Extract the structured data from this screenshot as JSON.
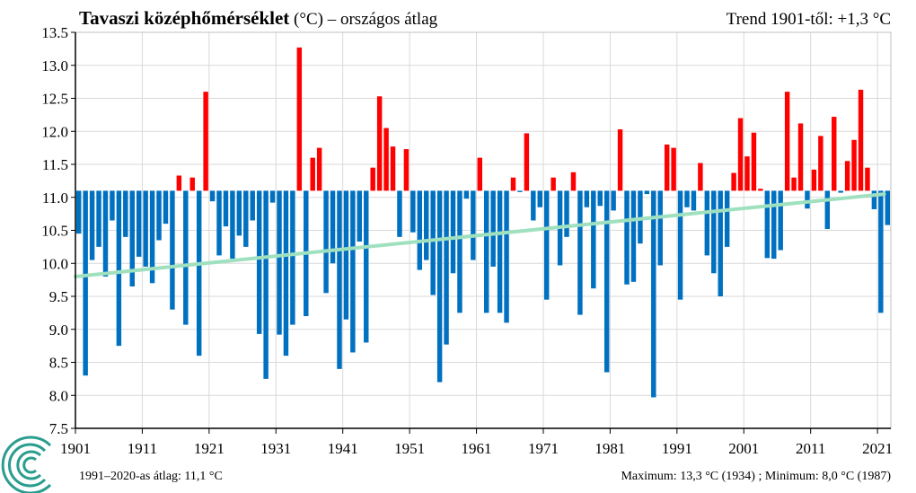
{
  "title": {
    "bold": "Tavaszi középhőmérséklet",
    "regular": " (°C) – országos átlag"
  },
  "trend_label": "Trend 1901-től: +1,3 °C",
  "footer": {
    "mean_label": "1991–2020-as átlag: 11,1 °C",
    "extremes_label": "Maximum: 13,3 °C (1934) ; Minimum: 8,0 °C (1987)"
  },
  "colors": {
    "above": "#ff0000",
    "below": "#0070c0",
    "trend": "#9fe0bf",
    "grid": "#d9d9d9",
    "axis": "#000000"
  },
  "logo_icon": "swirl-logo-icon",
  "chart_data": {
    "type": "bar",
    "baseline": 11.1,
    "ylim": [
      7.5,
      13.5
    ],
    "yticks": [
      "7.5",
      "8.0",
      "8.5",
      "9.0",
      "9.5",
      "10.0",
      "10.5",
      "11.0",
      "11.5",
      "12.0",
      "12.5",
      "13.0",
      "13.5"
    ],
    "xlim": [
      1901,
      2022
    ],
    "xticks": [
      "1901",
      "1911",
      "1921",
      "1931",
      "1941",
      "1951",
      "1961",
      "1971",
      "1981",
      "1991",
      "2001",
      "2011",
      "2021"
    ],
    "grid": true,
    "trend": {
      "start_year": 1901,
      "start_value": 9.8,
      "end_year": 2022,
      "end_value": 11.05
    },
    "years": [
      1901,
      1902,
      1903,
      1904,
      1905,
      1906,
      1907,
      1908,
      1909,
      1910,
      1911,
      1912,
      1913,
      1914,
      1915,
      1916,
      1917,
      1918,
      1919,
      1920,
      1921,
      1922,
      1923,
      1924,
      1925,
      1926,
      1927,
      1928,
      1929,
      1930,
      1931,
      1932,
      1933,
      1934,
      1935,
      1936,
      1937,
      1938,
      1939,
      1940,
      1941,
      1942,
      1943,
      1944,
      1945,
      1946,
      1947,
      1948,
      1949,
      1950,
      1951,
      1952,
      1953,
      1954,
      1955,
      1956,
      1957,
      1958,
      1959,
      1960,
      1961,
      1962,
      1963,
      1964,
      1965,
      1966,
      1967,
      1968,
      1969,
      1970,
      1971,
      1972,
      1973,
      1974,
      1975,
      1976,
      1977,
      1978,
      1979,
      1980,
      1981,
      1982,
      1983,
      1984,
      1985,
      1986,
      1987,
      1988,
      1989,
      1990,
      1991,
      1992,
      1993,
      1994,
      1995,
      1996,
      1997,
      1998,
      1999,
      2000,
      2001,
      2002,
      2003,
      2004,
      2005,
      2006,
      2007,
      2008,
      2009,
      2010,
      2011,
      2012,
      2013,
      2014,
      2015,
      2016,
      2017,
      2018,
      2019,
      2020,
      2021,
      2022
    ],
    "values": [
      10.45,
      8.3,
      10.05,
      10.25,
      9.8,
      10.65,
      8.75,
      10.4,
      9.65,
      10.1,
      9.95,
      9.7,
      10.35,
      10.6,
      9.3,
      11.33,
      9.07,
      11.3,
      8.6,
      12.6,
      10.94,
      10.12,
      10.56,
      10.07,
      10.42,
      10.25,
      10.65,
      8.93,
      8.25,
      10.92,
      8.92,
      8.6,
      9.07,
      13.27,
      9.2,
      11.6,
      11.75,
      9.55,
      10.0,
      8.4,
      9.15,
      8.65,
      10.33,
      8.8,
      11.45,
      12.53,
      12.05,
      11.77,
      10.4,
      11.73,
      10.47,
      9.9,
      10.05,
      9.52,
      8.2,
      8.77,
      9.85,
      9.25,
      10.98,
      10.05,
      11.6,
      9.25,
      9.95,
      9.25,
      9.1,
      11.3,
      11.08,
      11.97,
      10.65,
      10.85,
      9.45,
      11.3,
      9.97,
      10.4,
      11.38,
      9.22,
      10.85,
      9.62,
      10.87,
      8.35,
      10.8,
      12.03,
      9.68,
      9.72,
      10.3,
      11.05,
      7.97,
      9.97,
      11.8,
      11.75,
      9.45,
      10.85,
      10.8,
      11.52,
      10.12,
      9.85,
      9.5,
      10.25,
      11.37,
      12.2,
      11.62,
      11.98,
      11.13,
      10.08,
      10.07,
      10.2,
      12.6,
      11.3,
      12.12,
      10.83,
      11.42,
      11.93,
      10.52,
      12.22,
      11.07,
      11.55,
      11.87,
      12.63,
      11.45,
      10.82,
      9.25,
      10.58
    ]
  }
}
